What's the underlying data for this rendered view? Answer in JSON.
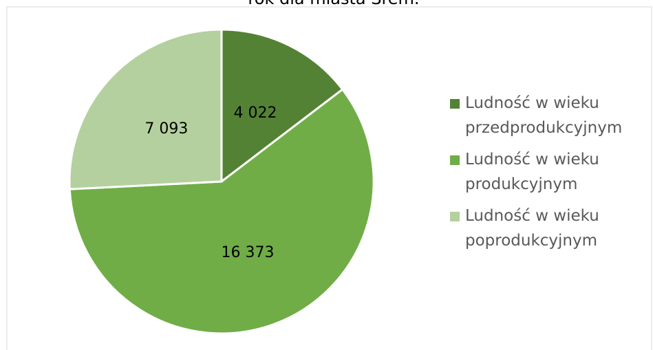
{
  "chart_data": {
    "type": "pie",
    "title": "rok dla miasta Śrem.",
    "categories": [
      "Ludność w wieku przedprodukcyjnym",
      "Ludność w wieku produkcyjnym",
      "Ludność w wieku poprodukcyjnym"
    ],
    "values": [
      4022,
      16373,
      7093
    ],
    "value_labels": [
      "4 022",
      "16 373",
      "7 093"
    ],
    "colors": [
      "#548235",
      "#70ad47",
      "#b4d09e"
    ],
    "legend": "right"
  }
}
